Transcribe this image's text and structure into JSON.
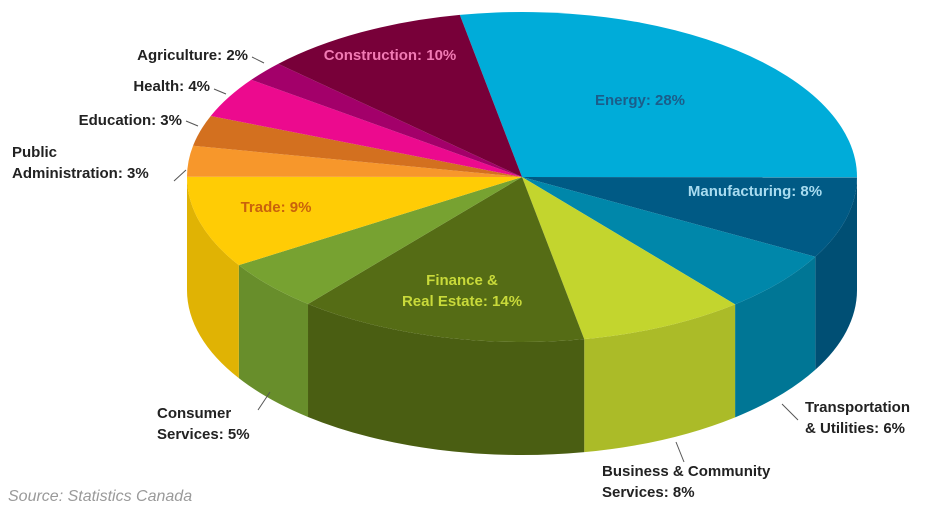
{
  "chart_data": {
    "type": "pie3d",
    "categories": [
      "Energy",
      "Manufacturing",
      "Transportation & Utilities",
      "Business & Community Services",
      "Finance & Real Estate",
      "Consumer Services",
      "Trade",
      "Public Administration",
      "Education",
      "Health",
      "Agriculture",
      "Construction"
    ],
    "values": [
      28,
      8,
      6,
      8,
      14,
      5,
      9,
      3,
      3,
      4,
      2,
      10
    ],
    "value_labels": [
      "Energy: 28%",
      "Manufacturing: 8%",
      "Transportation\n& Utilities: 6%",
      "Business & Community\nServices: 8%",
      "Finance &\nReal Estate: 14%",
      "Consumer\nServices: 5%",
      "Trade: 9%",
      "Public\nAdministration: 3%",
      "Education: 3%",
      "Health: 4%",
      "Agriculture: 2%",
      "Construction: 10%"
    ],
    "colors": [
      "#00acd9",
      "#005a85",
      "#0087aa",
      "#c3d52e",
      "#556c15",
      "#77a231",
      "#ffcc05",
      "#f7972b",
      "#d3701f",
      "#ec0a8e",
      "#a3006a",
      "#780039"
    ],
    "source": "Source: Statistics Canada"
  }
}
